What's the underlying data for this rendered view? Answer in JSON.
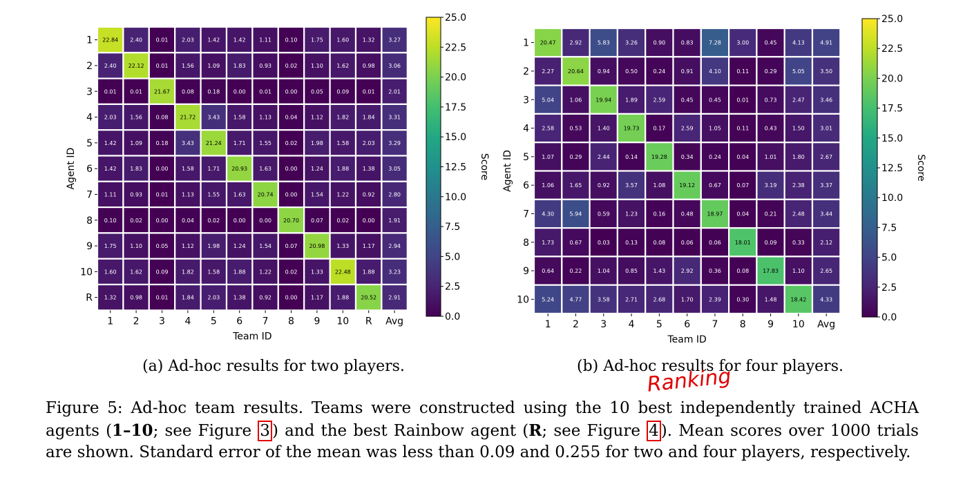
{
  "chart_data": [
    {
      "type": "heatmap",
      "caption": "(a) Ad-hoc results for two players.",
      "xlabel": "Team ID",
      "ylabel": "Agent ID",
      "colorbar_label": "Score",
      "colorbar_ticks": [
        "0.0",
        "2.5",
        "5.0",
        "7.5",
        "10.0",
        "12.5",
        "15.0",
        "17.5",
        "20.0",
        "22.5",
        "25.0"
      ],
      "zlim": [
        0,
        25
      ],
      "colormap": "viridis",
      "x_categories": [
        "1",
        "2",
        "3",
        "4",
        "5",
        "6",
        "7",
        "8",
        "9",
        "10",
        "R",
        "Avg"
      ],
      "y_categories": [
        "1",
        "2",
        "3",
        "4",
        "5",
        "6",
        "7",
        "8",
        "9",
        "10",
        "R"
      ],
      "values": [
        [
          "22.84",
          "2.40",
          "0.01",
          "2.03",
          "1.42",
          "1.42",
          "1.11",
          "0.10",
          "1.75",
          "1.60",
          "1.32",
          "3.27"
        ],
        [
          "2.40",
          "22.12",
          "0.01",
          "1.56",
          "1.09",
          "1.83",
          "0.93",
          "0.02",
          "1.10",
          "1.62",
          "0.98",
          "3.06"
        ],
        [
          "0.01",
          "0.01",
          "21.67",
          "0.08",
          "0.18",
          "0.00",
          "0.01",
          "0.00",
          "0.05",
          "0.09",
          "0.01",
          "2.01"
        ],
        [
          "2.03",
          "1.56",
          "0.08",
          "21.72",
          "3.43",
          "1.58",
          "1.13",
          "0.04",
          "1.12",
          "1.82",
          "1.84",
          "3.31"
        ],
        [
          "1.42",
          "1.09",
          "0.18",
          "3.43",
          "21.24",
          "1.71",
          "1.55",
          "0.02",
          "1.98",
          "1.58",
          "2.03",
          "3.29"
        ],
        [
          "1.42",
          "1.83",
          "0.00",
          "1.58",
          "1.71",
          "20.93",
          "1.63",
          "0.00",
          "1.24",
          "1.88",
          "1.38",
          "3.05"
        ],
        [
          "1.11",
          "0.93",
          "0.01",
          "1.13",
          "1.55",
          "1.63",
          "20.74",
          "0.00",
          "1.54",
          "1.22",
          "0.92",
          "2.80"
        ],
        [
          "0.10",
          "0.02",
          "0.00",
          "0.04",
          "0.02",
          "0.00",
          "0.00",
          "20.70",
          "0.07",
          "0.02",
          "0.00",
          "1.91"
        ],
        [
          "1.75",
          "1.10",
          "0.05",
          "1.12",
          "1.98",
          "1.24",
          "1.54",
          "0.07",
          "20.98",
          "1.33",
          "1.17",
          "2.94"
        ],
        [
          "1.60",
          "1.62",
          "0.09",
          "1.82",
          "1.58",
          "1.88",
          "1.22",
          "0.02",
          "1.33",
          "22.48",
          "1.88",
          "3.23"
        ],
        [
          "1.32",
          "0.98",
          "0.01",
          "1.84",
          "2.03",
          "1.38",
          "0.92",
          "0.00",
          "1.17",
          "1.88",
          "20.52",
          "2.91"
        ]
      ]
    },
    {
      "type": "heatmap",
      "caption": "(b) Ad-hoc results for four players.",
      "xlabel": "Team ID",
      "ylabel": "Agent ID",
      "colorbar_label": "Score",
      "colorbar_ticks": [
        "0.0",
        "2.5",
        "5.0",
        "7.5",
        "10.0",
        "12.5",
        "15.0",
        "17.5",
        "20.0",
        "22.5",
        "25.0"
      ],
      "zlim": [
        0,
        25
      ],
      "colormap": "viridis",
      "x_categories": [
        "1",
        "2",
        "3",
        "4",
        "5",
        "6",
        "7",
        "8",
        "9",
        "10",
        "Avg"
      ],
      "y_categories": [
        "1",
        "2",
        "3",
        "4",
        "5",
        "6",
        "7",
        "8",
        "9",
        "10"
      ],
      "values": [
        [
          "20.47",
          "2.92",
          "5.83",
          "3.26",
          "0.90",
          "0.83",
          "7.28",
          "3.00",
          "0.45",
          "4.13",
          "4.91"
        ],
        [
          "2.27",
          "20.64",
          "0.94",
          "0.50",
          "0.24",
          "0.91",
          "4.10",
          "0.11",
          "0.29",
          "5.05",
          "3.50"
        ],
        [
          "5.04",
          "1.06",
          "19.94",
          "1.89",
          "2.59",
          "0.45",
          "0.45",
          "0.01",
          "0.73",
          "2.47",
          "3.46"
        ],
        [
          "2.58",
          "0.53",
          "1.40",
          "19.73",
          "0.17",
          "2.59",
          "1.05",
          "0.11",
          "0.43",
          "1.50",
          "3.01"
        ],
        [
          "1.07",
          "0.29",
          "2.44",
          "0.14",
          "19.28",
          "0.34",
          "0.24",
          "0.04",
          "1.01",
          "1.80",
          "2.67"
        ],
        [
          "1.06",
          "1.65",
          "0.92",
          "3.57",
          "1.08",
          "19.12",
          "0.67",
          "0.07",
          "3.19",
          "2.38",
          "3.37"
        ],
        [
          "4.30",
          "5.94",
          "0.59",
          "1.23",
          "0.16",
          "0.48",
          "18.97",
          "0.04",
          "0.21",
          "2.48",
          "3.44"
        ],
        [
          "1.73",
          "0.67",
          "0.03",
          "0.13",
          "0.08",
          "0.06",
          "0.06",
          "18.01",
          "0.09",
          "0.33",
          "2.12"
        ],
        [
          "0.64",
          "0.22",
          "1.04",
          "0.85",
          "1.43",
          "2.92",
          "0.36",
          "0.08",
          "17.83",
          "1.10",
          "2.65"
        ],
        [
          "5.24",
          "4.77",
          "3.58",
          "2.71",
          "2.68",
          "1.70",
          "2.39",
          "0.30",
          "1.48",
          "18.42",
          "4.33"
        ]
      ]
    }
  ],
  "caption": {
    "label": "Figure 5:",
    "t1": "Ad-hoc team results. Teams were constructed using the 10 best independently trained ACHA agents (",
    "b1": "1–10",
    "t2": "; see Figure ",
    "ref1": "3",
    "t3": ") and the best Rainbow agent (",
    "b2": "R",
    "t4": "; see Figure ",
    "ref2": "4",
    "t5": ").  Mean scores over 1000 trials are shown.  Standard error of the mean was less than 0.09 and 0.255 for two and four players, respectively."
  },
  "annotation": {
    "handwritten": "Ranking",
    "color": "#e00000"
  }
}
